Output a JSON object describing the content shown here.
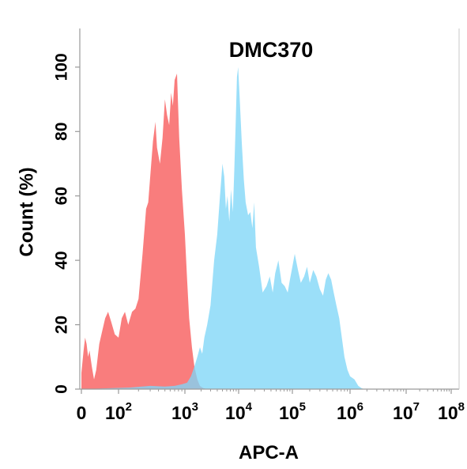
{
  "chart_data": {
    "type": "area",
    "title": "DMC370",
    "xlabel": "APC-A",
    "ylabel": "Count  (%)",
    "x_scale": "biexponential",
    "xlim": [
      0,
      100000000
    ],
    "ylim": [
      0,
      112
    ],
    "y_ticks": [
      0,
      20,
      40,
      60,
      80,
      100
    ],
    "x_ticks": [
      {
        "value": 0,
        "base": "0",
        "exp": ""
      },
      {
        "value": 100,
        "base": "10",
        "exp": "2"
      },
      {
        "value": 1000,
        "base": "10",
        "exp": "3"
      },
      {
        "value": 10000,
        "base": "10",
        "exp": "4"
      },
      {
        "value": 100000,
        "base": "10",
        "exp": "5"
      },
      {
        "value": 1000000,
        "base": "10",
        "exp": "6"
      },
      {
        "value": 10000000,
        "base": "10",
        "exp": "7"
      },
      {
        "value": 100000000,
        "base": "10",
        "exp": "8"
      }
    ],
    "grid": false,
    "series": [
      {
        "color": "#f87272",
        "points": [
          [
            0,
            5
          ],
          [
            6,
            12
          ],
          [
            10,
            16
          ],
          [
            14,
            14
          ],
          [
            18,
            10
          ],
          [
            22,
            12
          ],
          [
            28,
            7
          ],
          [
            34,
            3
          ],
          [
            40,
            6
          ],
          [
            48,
            14
          ],
          [
            56,
            18
          ],
          [
            64,
            22
          ],
          [
            72,
            24
          ],
          [
            80,
            21
          ],
          [
            90,
            17
          ],
          [
            100,
            16
          ],
          [
            112,
            22
          ],
          [
            125,
            24
          ],
          [
            140,
            20
          ],
          [
            160,
            24
          ],
          [
            180,
            25
          ],
          [
            200,
            28
          ],
          [
            230,
            42
          ],
          [
            260,
            56
          ],
          [
            280,
            58
          ],
          [
            300,
            66
          ],
          [
            330,
            77
          ],
          [
            360,
            83
          ],
          [
            380,
            75
          ],
          [
            420,
            70
          ],
          [
            460,
            78
          ],
          [
            500,
            90
          ],
          [
            540,
            85
          ],
          [
            580,
            82
          ],
          [
            620,
            92
          ],
          [
            660,
            88
          ],
          [
            700,
            96
          ],
          [
            760,
            98
          ],
          [
            820,
            78
          ],
          [
            900,
            62
          ],
          [
            1000,
            48
          ],
          [
            1100,
            34
          ],
          [
            1200,
            22
          ],
          [
            1350,
            13
          ],
          [
            1500,
            7
          ],
          [
            1700,
            3
          ],
          [
            1900,
            1
          ],
          [
            2200,
            0.3
          ],
          [
            2600,
            0
          ]
        ]
      },
      {
        "color": "#7fd6f7",
        "points": [
          [
            0,
            0
          ],
          [
            150,
            0.5
          ],
          [
            300,
            1
          ],
          [
            500,
            0.8
          ],
          [
            700,
            1
          ],
          [
            900,
            1.5
          ],
          [
            1100,
            2
          ],
          [
            1300,
            4
          ],
          [
            1500,
            7
          ],
          [
            1700,
            10
          ],
          [
            1900,
            13
          ],
          [
            2100,
            11
          ],
          [
            2300,
            16
          ],
          [
            2600,
            20
          ],
          [
            3000,
            26
          ],
          [
            3500,
            40
          ],
          [
            4000,
            48
          ],
          [
            4500,
            60
          ],
          [
            5000,
            70
          ],
          [
            5400,
            66
          ],
          [
            5800,
            56
          ],
          [
            6200,
            60
          ],
          [
            6700,
            52
          ],
          [
            7200,
            62
          ],
          [
            7800,
            55
          ],
          [
            8300,
            68
          ],
          [
            8800,
            82
          ],
          [
            9300,
            97
          ],
          [
            9800,
            100
          ],
          [
            10500,
            90
          ],
          [
            11500,
            76
          ],
          [
            12500,
            65
          ],
          [
            13500,
            58
          ],
          [
            15000,
            54
          ],
          [
            16500,
            55
          ],
          [
            18000,
            50
          ],
          [
            19500,
            58
          ],
          [
            21000,
            44
          ],
          [
            24000,
            38
          ],
          [
            28000,
            30
          ],
          [
            33000,
            32
          ],
          [
            38000,
            35
          ],
          [
            43000,
            30
          ],
          [
            48000,
            36
          ],
          [
            55000,
            40
          ],
          [
            63000,
            33
          ],
          [
            72000,
            32
          ],
          [
            82000,
            30
          ],
          [
            90000,
            34
          ],
          [
            100000,
            38
          ],
          [
            110000,
            42
          ],
          [
            125000,
            37
          ],
          [
            140000,
            33
          ],
          [
            160000,
            35
          ],
          [
            180000,
            38
          ],
          [
            200000,
            33
          ],
          [
            230000,
            37
          ],
          [
            260000,
            35
          ],
          [
            300000,
            31
          ],
          [
            340000,
            29
          ],
          [
            380000,
            34
          ],
          [
            420000,
            36
          ],
          [
            470000,
            34
          ],
          [
            520000,
            30
          ],
          [
            580000,
            26
          ],
          [
            650000,
            22
          ],
          [
            720000,
            16
          ],
          [
            800000,
            10
          ],
          [
            900000,
            6
          ],
          [
            1000000,
            4
          ],
          [
            1200000,
            3
          ],
          [
            1400000,
            1
          ],
          [
            1600000,
            0.3
          ],
          [
            1800000,
            0
          ]
        ]
      }
    ]
  }
}
